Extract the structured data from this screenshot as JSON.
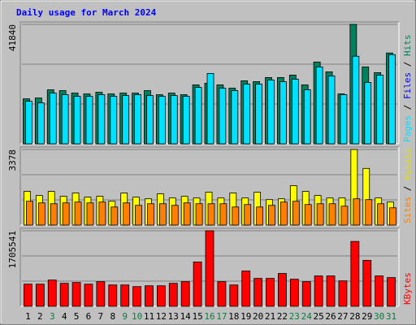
{
  "title": "Daily usage for March 2024",
  "chart_data": [
    {
      "type": "bar",
      "ylim": [
        0,
        41840
      ],
      "yticks": [
        41840
      ],
      "series": [
        {
          "name": "Hits",
          "color": "#00805c",
          "values": [
            15760,
            16050,
            18920,
            18630,
            17770,
            17480,
            18060,
            17480,
            17770,
            17770,
            18630,
            17200,
            17770,
            17200,
            20640,
            21210,
            20640,
            19490,
            22070,
            21780,
            23220,
            23220,
            24070,
            20640,
            28660,
            25220,
            17480,
            41840,
            26940,
            24930,
            31810
          ]
        },
        {
          "name": "Files",
          "color": "#0000ff",
          "values": [
            11200,
            10800,
            13300,
            12900,
            12500,
            12500,
            12900,
            12500,
            12700,
            12900,
            12700,
            12500,
            12700,
            12500,
            14800,
            18500,
            14600,
            14000,
            15700,
            15700,
            16800,
            16300,
            17000,
            14200,
            20200,
            17800,
            12900,
            23000,
            16100,
            18100,
            23400
          ]
        },
        {
          "name": "Pages",
          "color": "#00e0ff",
          "values": [
            14900,
            14330,
            17770,
            17200,
            16620,
            16620,
            17200,
            16620,
            16910,
            17200,
            16910,
            16620,
            16910,
            16620,
            19780,
            24650,
            19490,
            18630,
            20920,
            20920,
            22350,
            21780,
            22640,
            18920,
            26940,
            23790,
            17200,
            30670,
            21500,
            24070,
            31240
          ]
        }
      ]
    },
    {
      "type": "bar",
      "ylim": [
        0,
        3378
      ],
      "yticks": [
        3378
      ],
      "series": [
        {
          "name": "Visits",
          "color": "#ffff00",
          "values": [
            1505,
            1321,
            1505,
            1285,
            1431,
            1248,
            1285,
            1064,
            1431,
            1248,
            1174,
            1395,
            1211,
            1285,
            1211,
            1468,
            1211,
            1431,
            1211,
            1468,
            1138,
            1174,
            1762,
            1505,
            1321,
            1211,
            1211,
            3378,
            2532,
            1211,
            1028
          ]
        },
        {
          "name": "Sites",
          "color": "#ff8000",
          "values": [
            1064,
            991,
            954,
            991,
            1028,
            991,
            1028,
            807,
            991,
            881,
            954,
            954,
            881,
            991,
            954,
            954,
            954,
            807,
            918,
            807,
            881,
            1028,
            1064,
            918,
            954,
            954,
            844,
            1174,
            1138,
            954,
            771
          ]
        }
      ]
    },
    {
      "type": "bar",
      "ylim": [
        0,
        1705541
      ],
      "yticks": [
        1705541
      ],
      "categories": [
        "1",
        "2",
        "3",
        "4",
        "5",
        "6",
        "7",
        "8",
        "9",
        "10",
        "11",
        "12",
        "13",
        "14",
        "15",
        "16",
        "17",
        "18",
        "19",
        "20",
        "21",
        "22",
        "23",
        "24",
        "25",
        "26",
        "27",
        "28",
        "29",
        "30",
        "31"
      ],
      "category_colors": [
        "#000000",
        "#000000",
        "#008040",
        "#000000",
        "#000000",
        "#000000",
        "#000000",
        "#000000",
        "#008040",
        "#008040",
        "#000000",
        "#000000",
        "#000000",
        "#000000",
        "#000000",
        "#008040",
        "#008040",
        "#000000",
        "#000000",
        "#000000",
        "#000000",
        "#000000",
        "#008040",
        "#008040",
        "#000000",
        "#000000",
        "#000000",
        "#000000",
        "#000000",
        "#008040",
        "#008040"
      ],
      "series": [
        {
          "name": "KBytes",
          "color": "#ff0000",
          "values": [
            500500,
            500500,
            593200,
            519100,
            537600,
            500500,
            556100,
            482000,
            482000,
            444900,
            463500,
            463500,
            519100,
            556100,
            1001100,
            1705541,
            556100,
            482000,
            797100,
            630300,
            630300,
            741500,
            611800,
            556100,
            685900,
            685900,
            574700,
            1464500,
            1038100,
            685900,
            648800
          ]
        }
      ]
    }
  ]
}
